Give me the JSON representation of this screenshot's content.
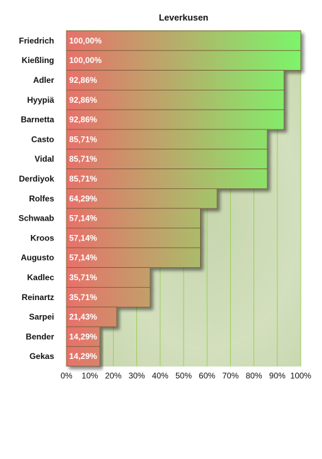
{
  "chart_data": {
    "type": "bar",
    "orientation": "horizontal",
    "title": "Leverkusen",
    "xlabel": "",
    "ylabel": "",
    "xlim": [
      0,
      100
    ],
    "grid": true,
    "categories": [
      "Friedrich",
      "Kießling",
      "Adler",
      "Hyypiä",
      "Barnetta",
      "Casto",
      "Vidal",
      "Derdiyok",
      "Rolfes",
      "Schwaab",
      "Kroos",
      "Augusto",
      "Kadlec",
      "Reinartz",
      "Sarpei",
      "Bender",
      "Gekas"
    ],
    "values": [
      100.0,
      100.0,
      92.86,
      92.86,
      92.86,
      85.71,
      85.71,
      85.71,
      64.29,
      57.14,
      57.14,
      57.14,
      35.71,
      35.71,
      21.43,
      14.29,
      14.29
    ],
    "value_labels": [
      "100,00%",
      "100,00%",
      "92,86%",
      "92,86%",
      "92,86%",
      "85,71%",
      "85,71%",
      "85,71%",
      "64,29%",
      "57,14%",
      "57,14%",
      "57,14%",
      "35,71%",
      "35,71%",
      "21,43%",
      "14,29%",
      "14,29%"
    ],
    "x_ticks": [
      "0%",
      "10%",
      "20%",
      "30%",
      "40%",
      "50%",
      "60%",
      "70%",
      "80%",
      "90%",
      "100%"
    ],
    "colors": {
      "bar_low": "#e8706a",
      "bar_high": "#7cf56a",
      "grid": "#9ccf5a",
      "background": "#cbd8b4",
      "bar_border": "#7a5a3a"
    }
  }
}
